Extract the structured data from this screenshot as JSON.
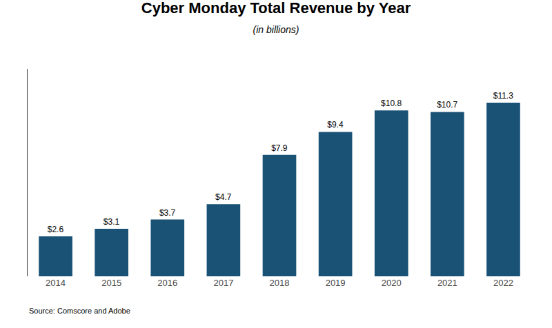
{
  "chart_data": {
    "type": "bar",
    "title": "Cyber Monday Total Revenue by Year",
    "subtitle": "(in billions)",
    "source": "Source: Comscore and Adobe",
    "categories": [
      "2014",
      "2015",
      "2016",
      "2017",
      "2018",
      "2019",
      "2020",
      "2021",
      "2022"
    ],
    "values": [
      2.6,
      3.1,
      3.7,
      4.7,
      7.9,
      9.4,
      10.8,
      10.7,
      11.3
    ],
    "value_labels": [
      "$2.6",
      "$3.1",
      "$3.7",
      "$4.7",
      "$7.9",
      "$9.4",
      "$10.8",
      "$10.7",
      "$11.3"
    ],
    "data_labels": true,
    "color": "#1a5276",
    "ylim": [
      0,
      13.5
    ],
    "tick_labels": "x",
    "grid": false
  }
}
